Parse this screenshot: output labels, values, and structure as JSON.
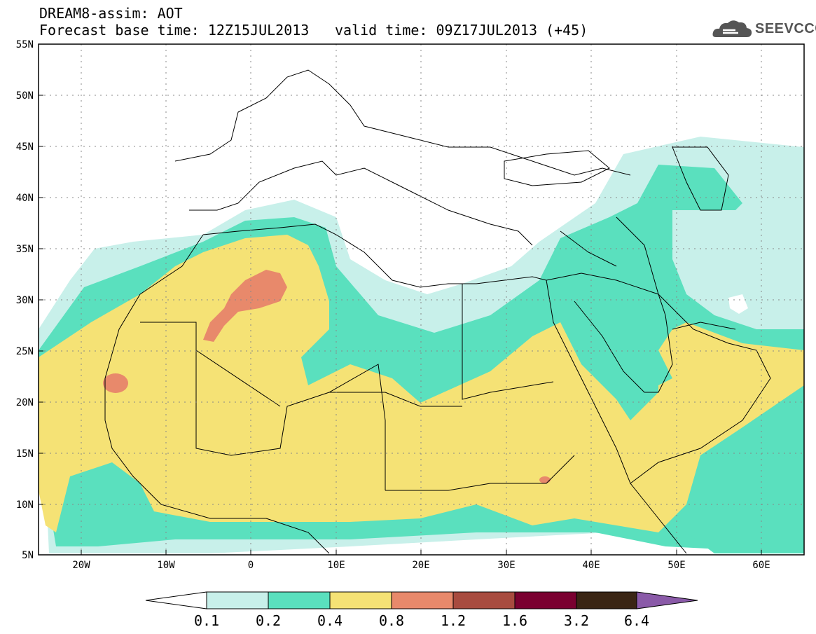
{
  "header": {
    "title": "DREAM8-assim: AOT",
    "base_time": "Forecast base time: 12Z15JUL2013",
    "valid_time": "valid time: 09Z17JUL2013 (+45)"
  },
  "logo": {
    "text": "SEEVCCC",
    "icon": "cloud-icon"
  },
  "map": {
    "lat_labels": [
      "55N",
      "50N",
      "45N",
      "40N",
      "35N",
      "30N",
      "25N",
      "20N",
      "15N",
      "10N",
      "5N"
    ],
    "lon_labels": [
      "20W",
      "10W",
      "0",
      "10E",
      "20E",
      "30E",
      "40E",
      "50E",
      "60E"
    ],
    "grid": "dotted"
  },
  "colorbar": {
    "levels": [
      "0.1",
      "0.2",
      "0.4",
      "0.8",
      "1.2",
      "1.6",
      "3.2",
      "6.4"
    ],
    "colors": [
      "#ffffff",
      "#c8f0ea",
      "#5ae0be",
      "#f5e275",
      "#e8896b",
      "#a84b3f",
      "#7a0030",
      "#3a2514",
      "#8a5aa8"
    ]
  },
  "colors": {
    "aot_01_02": "#c8f0ea",
    "aot_02_04": "#5ae0be",
    "aot_04_08": "#f5e275",
    "aot_08_12": "#e8896b",
    "border": "#000000",
    "frame": "#000000"
  }
}
